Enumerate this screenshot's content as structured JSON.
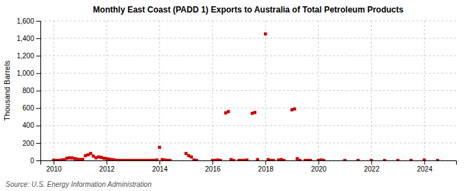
{
  "chart_data": {
    "type": "scatter",
    "title": "Monthly East Coast (PADD 1) Exports to Australia of Total Petroleum Products",
    "ylabel": "Thousand Barrels",
    "annotations": [
      "Source: U.S. Energy Information Administration"
    ],
    "color": "#cc0000",
    "marker": "square",
    "grid": true,
    "xlim": [
      2009.5,
      2025.2
    ],
    "xticks": [
      2010,
      2012,
      2014,
      2016,
      2018,
      2020,
      2022,
      2024
    ],
    "ylim": [
      0,
      1600
    ],
    "yticks": [
      0,
      200,
      400,
      600,
      800,
      {
        "value": 1000,
        "label": "1,000"
      },
      {
        "value": 1200,
        "label": "1,200"
      },
      {
        "value": 1400,
        "label": "1,400"
      },
      {
        "value": 1600,
        "label": "1,600"
      }
    ],
    "x": [
      2010.0,
      2010.1,
      2010.2,
      2010.3,
      2010.4,
      2010.5,
      2010.6,
      2010.7,
      2010.8,
      2010.9,
      2011.0,
      2011.1,
      2011.2,
      2011.3,
      2011.4,
      2011.5,
      2011.6,
      2011.7,
      2011.8,
      2011.9,
      2012.0,
      2012.1,
      2012.2,
      2012.3,
      2012.4,
      2012.5,
      2012.6,
      2012.7,
      2012.8,
      2012.9,
      2013.0,
      2013.1,
      2013.2,
      2013.3,
      2013.4,
      2013.5,
      2013.6,
      2013.7,
      2013.8,
      2013.9,
      2014.0,
      2014.1,
      2014.2,
      2014.3,
      2014.4,
      2015.0,
      2015.1,
      2015.2,
      2015.3,
      2015.4,
      2016.0,
      2016.1,
      2016.2,
      2016.3,
      2016.5,
      2016.6,
      2016.7,
      2016.8,
      2017.0,
      2017.1,
      2017.2,
      2017.3,
      2017.5,
      2017.6,
      2017.7,
      2018.0,
      2018.1,
      2018.2,
      2018.3,
      2018.5,
      2018.6,
      2018.7,
      2019.0,
      2019.1,
      2019.2,
      2019.3,
      2019.5,
      2019.6,
      2019.7,
      2020.0,
      2020.1,
      2020.2,
      2021.0,
      2021.5,
      2022.0,
      2022.5,
      2023.0,
      2023.5,
      2024.0,
      2024.5
    ],
    "values": [
      3,
      0,
      0,
      5,
      8,
      25,
      30,
      28,
      20,
      15,
      10,
      12,
      55,
      65,
      80,
      50,
      30,
      40,
      35,
      25,
      20,
      15,
      10,
      5,
      0,
      0,
      0,
      0,
      0,
      0,
      0,
      0,
      0,
      0,
      0,
      0,
      0,
      0,
      0,
      5,
      150,
      10,
      5,
      0,
      0,
      80,
      55,
      40,
      5,
      0,
      0,
      0,
      5,
      0,
      545,
      560,
      10,
      0,
      0,
      0,
      0,
      5,
      540,
      550,
      10,
      1450,
      10,
      0,
      0,
      5,
      10,
      0,
      580,
      590,
      20,
      0,
      0,
      0,
      0,
      0,
      5,
      0,
      0,
      0,
      0,
      0,
      0,
      0,
      5,
      0
    ]
  }
}
